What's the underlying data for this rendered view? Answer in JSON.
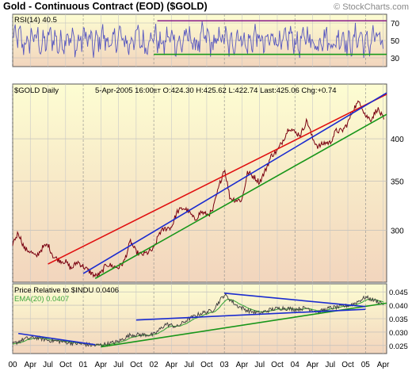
{
  "header": {
    "title": "Gold - Continuous Contract (EOD) ($GOLD)",
    "brand": "© StockCharts.com"
  },
  "colors": {
    "background_top": "#fdfdd2",
    "background_bottom": "#f2d5bd",
    "price_line": "#7a0010",
    "rsi_line": "#5858c0",
    "ratio_line": "#3d3d3d",
    "ema_line": "#3ea63e",
    "upper_channel": "#e01010",
    "middle_channel": "#1a2bd0",
    "lower_channel": "#18961a",
    "rsi_upper": "#881a88",
    "rsi_lower": "#1a9a1a"
  },
  "chart_data": [
    {
      "type": "line",
      "panel": "rsi",
      "label_name": "RSI(14)",
      "label_value": "40.5",
      "ylim": [
        20,
        80
      ],
      "yticks": [
        30,
        50,
        70
      ],
      "levels": [
        70,
        30
      ],
      "grid": true
    },
    {
      "type": "line",
      "panel": "price",
      "label": "$GOLD Daily",
      "quote": {
        "date": "5-Apr-2005 16:00",
        "tz": "ET",
        "open": "O:424.30",
        "high": "H:425.62",
        "low": "L:422.74",
        "last": "Last:425.06",
        "chg": "Chg:+0.74"
      },
      "y_scale": "log",
      "ylim": [
        255,
        475
      ],
      "yticks": [
        300,
        350,
        400
      ],
      "grid": true,
      "series": [
        {
          "x": [
            2000.0,
            2000.08,
            2000.17,
            2000.25,
            2000.33,
            2000.42,
            2000.5,
            2000.58,
            2000.67,
            2000.75,
            2000.83,
            2000.92,
            2001.0,
            2001.08,
            2001.17,
            2001.25,
            2001.33,
            2001.42,
            2001.5,
            2001.58,
            2001.67,
            2001.75,
            2001.83,
            2001.92,
            2002.0,
            2002.08,
            2002.17,
            2002.25,
            2002.33,
            2002.42,
            2002.5,
            2002.58,
            2002.67,
            2002.75,
            2002.83,
            2002.92,
            2003.0,
            2003.08,
            2003.17,
            2003.25,
            2003.33,
            2003.42,
            2003.5,
            2003.58,
            2003.67,
            2003.75,
            2003.83,
            2003.92,
            2004.0,
            2004.08,
            2004.17,
            2004.25,
            2004.33,
            2004.42,
            2004.5,
            2004.58,
            2004.67,
            2004.75,
            2004.83,
            2004.92,
            2005.0,
            2005.08,
            2005.17,
            2005.26
          ],
          "values": [
            288,
            298,
            283,
            281,
            276,
            284,
            287,
            276,
            273,
            272,
            266,
            272,
            268,
            264,
            260,
            262,
            270,
            268,
            267,
            272,
            290,
            280,
            278,
            280,
            283,
            298,
            302,
            303,
            318,
            322,
            318,
            310,
            318,
            315,
            318,
            343,
            365,
            332,
            330,
            330,
            360,
            355,
            349,
            362,
            380,
            385,
            398,
            415,
            408,
            405,
            424,
            400,
            390,
            395,
            395,
            410,
            410,
            420,
            440,
            450,
            430,
            425,
            440,
            425.06
          ]
        }
      ],
      "channels": [
        {
          "name": "upper",
          "x": [
            2000.5,
            2005.3
          ],
          "y": [
            270,
            460
          ]
        },
        {
          "name": "middle",
          "x": [
            2001.0,
            2005.3
          ],
          "y": [
            262,
            462
          ]
        },
        {
          "name": "lower",
          "x": [
            2001.17,
            2005.3
          ],
          "y": [
            258,
            432
          ]
        }
      ]
    },
    {
      "type": "line",
      "panel": "relative",
      "label_name": "Price Relative to $INDU",
      "label_value": "0.0406",
      "ema_name": "EMA(20)",
      "ema_value": "0.0407",
      "ylim": [
        0.022,
        0.048
      ],
      "yticks": [
        0.025,
        0.03,
        0.035,
        0.04,
        0.045
      ],
      "grid": true,
      "series": [
        {
          "x": [
            2000.0,
            2000.17,
            2000.33,
            2000.5,
            2000.67,
            2000.83,
            2001.0,
            2001.17,
            2001.33,
            2001.5,
            2001.67,
            2001.83,
            2002.0,
            2002.17,
            2002.33,
            2002.5,
            2002.67,
            2002.83,
            2003.0,
            2003.17,
            2003.33,
            2003.5,
            2003.67,
            2003.83,
            2004.0,
            2004.17,
            2004.33,
            2004.5,
            2004.67,
            2004.83,
            2005.0,
            2005.26
          ],
          "values": [
            0.0255,
            0.0275,
            0.028,
            0.027,
            0.0265,
            0.026,
            0.0255,
            0.025,
            0.0255,
            0.0265,
            0.029,
            0.029,
            0.029,
            0.033,
            0.032,
            0.035,
            0.037,
            0.038,
            0.044,
            0.04,
            0.038,
            0.037,
            0.0385,
            0.039,
            0.0385,
            0.039,
            0.0375,
            0.039,
            0.0395,
            0.0405,
            0.043,
            0.0406
          ]
        }
      ],
      "trendlines": [
        {
          "name": "lower-support",
          "color": "green",
          "x": [
            2001.25,
            2005.3
          ],
          "y": [
            0.0245,
            0.0408
          ]
        },
        {
          "name": "upper-wedge",
          "color": "blue",
          "x": [
            2003.0,
            2005.0
          ],
          "y": [
            0.0445,
            0.0395
          ]
        },
        {
          "name": "lower-wedge",
          "color": "blue",
          "x": [
            2001.75,
            2005.0
          ],
          "y": [
            0.0345,
            0.0385
          ]
        },
        {
          "name": "early-down",
          "color": "blue",
          "x": [
            2000.08,
            2001.17
          ],
          "y": [
            0.0295,
            0.0253
          ]
        }
      ]
    }
  ],
  "x_axis": {
    "labels": [
      {
        "t": 2000.0,
        "text": "00"
      },
      {
        "t": 2000.25,
        "text": "Apr"
      },
      {
        "t": 2000.5,
        "text": "Jul"
      },
      {
        "t": 2000.75,
        "text": "Oct"
      },
      {
        "t": 2001.0,
        "text": "01"
      },
      {
        "t": 2001.25,
        "text": "Apr"
      },
      {
        "t": 2001.5,
        "text": "Jul"
      },
      {
        "t": 2001.75,
        "text": "Oct"
      },
      {
        "t": 2002.0,
        "text": "02"
      },
      {
        "t": 2002.25,
        "text": "Apr"
      },
      {
        "t": 2002.5,
        "text": "Jul"
      },
      {
        "t": 2002.75,
        "text": "Oct"
      },
      {
        "t": 2003.0,
        "text": "03"
      },
      {
        "t": 2003.25,
        "text": "Apr"
      },
      {
        "t": 2003.5,
        "text": "Jul"
      },
      {
        "t": 2003.75,
        "text": "Oct"
      },
      {
        "t": 2004.0,
        "text": "04"
      },
      {
        "t": 2004.25,
        "text": "Apr"
      },
      {
        "t": 2004.5,
        "text": "Jul"
      },
      {
        "t": 2004.75,
        "text": "Oct"
      },
      {
        "t": 2005.0,
        "text": "05"
      },
      {
        "t": 2005.25,
        "text": "Apr"
      }
    ]
  }
}
